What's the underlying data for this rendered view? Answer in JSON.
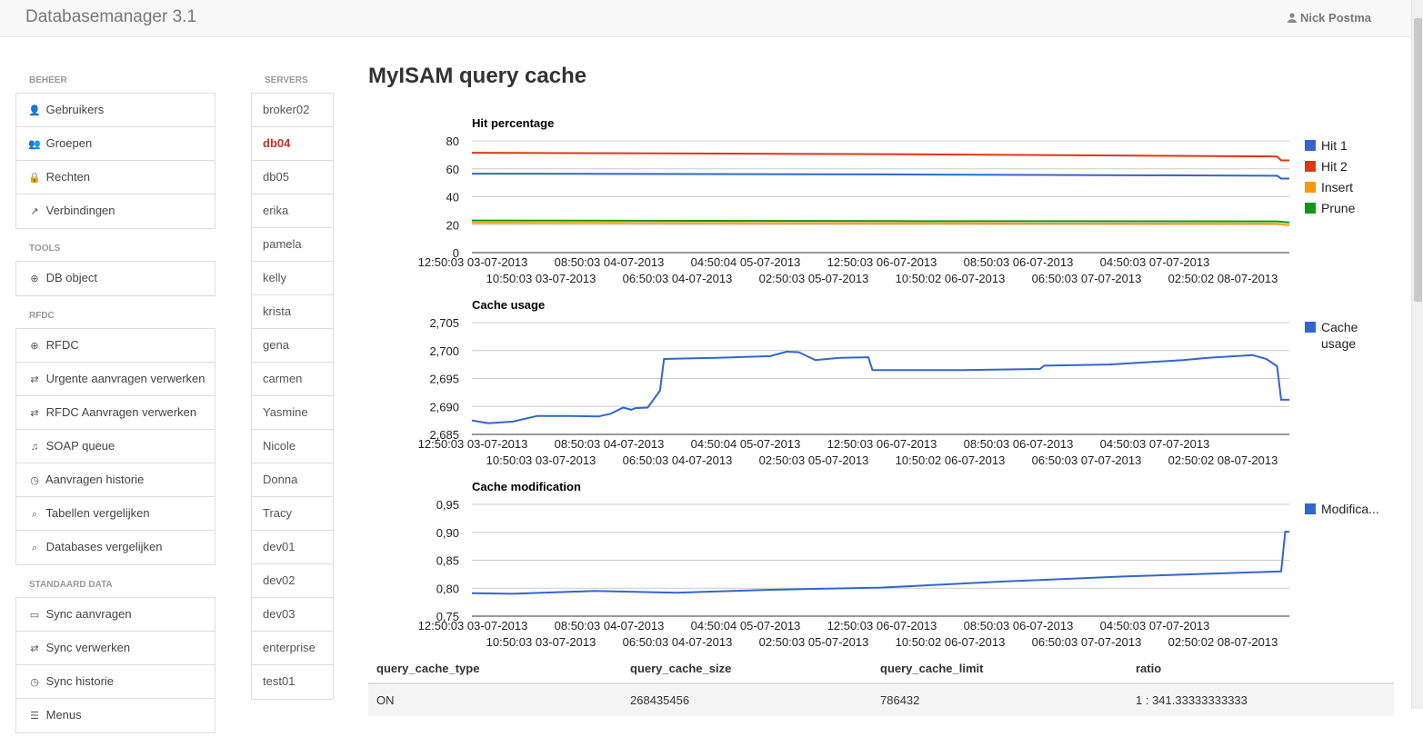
{
  "app": {
    "title": "Databasemanager 3.1",
    "user": "Nick Postma"
  },
  "sidebar": {
    "sections": [
      {
        "title": "BEHEER",
        "items": [
          {
            "label": "Gebruikers",
            "icon": "user-icon"
          },
          {
            "label": "Groepen",
            "icon": "users-icon"
          },
          {
            "label": "Rechten",
            "icon": "lock-icon"
          },
          {
            "label": "Verbindingen",
            "icon": "external-link-icon"
          }
        ]
      },
      {
        "title": "TOOLS",
        "items": [
          {
            "label": "DB object",
            "icon": "circle-arrow-icon"
          }
        ]
      },
      {
        "title": "RFDC",
        "items": [
          {
            "label": "RFDC",
            "icon": "circle-arrow-icon"
          },
          {
            "label": "Urgente aanvragen verwerken",
            "icon": "exchange-icon"
          },
          {
            "label": "RFDC Aanvragen verwerken",
            "icon": "exchange-icon"
          },
          {
            "label": "SOAP queue",
            "icon": "bell-icon"
          },
          {
            "label": "Aanvragen historie",
            "icon": "clock-icon"
          },
          {
            "label": "Tabellen vergelijken",
            "icon": "search-icon"
          },
          {
            "label": "Databases vergelijken",
            "icon": "search-icon"
          }
        ]
      },
      {
        "title": "STANDAARD DATA",
        "items": [
          {
            "label": "Sync aanvragen",
            "icon": "hdd-icon"
          },
          {
            "label": "Sync verwerken",
            "icon": "exchange-icon"
          },
          {
            "label": "Sync historie",
            "icon": "clock-icon"
          },
          {
            "label": "Menus",
            "icon": "list-icon"
          }
        ]
      }
    ]
  },
  "servers": {
    "title": "SERVERS",
    "active": "db04",
    "items": [
      "broker02",
      "db04",
      "db05",
      "erika",
      "pamela",
      "kelly",
      "krista",
      "gena",
      "carmen",
      "Yasmine",
      "Nicole",
      "Donna",
      "Tracy",
      "dev01",
      "dev02",
      "dev03",
      "enterprise",
      "test01"
    ]
  },
  "main": {
    "title": "MyISAM query cache"
  },
  "chart_data": [
    {
      "type": "line",
      "title": "Hit percentage",
      "ylim": [
        0,
        80
      ],
      "yticks": [
        "80",
        "60",
        "40",
        "20",
        "0"
      ],
      "x_tick_labels_row1": [
        "12:50:03 03-07-2013",
        "08:50:03 04-07-2013",
        "04:50:04 05-07-2013",
        "12:50:03 06-07-2013",
        "08:50:03 06-07-2013",
        "04:50:03 07-07-2013"
      ],
      "x_tick_labels_row2": [
        "10:50:03 03-07-2013",
        "06:50:03 04-07-2013",
        "02:50:03 05-07-2013",
        "10:50:02 06-07-2013",
        "06:50:03 07-07-2013",
        "02:50:02 08-07-2013"
      ],
      "series": [
        {
          "name": "Hit 1",
          "color": "#3366cc",
          "values": [
            [
              0,
              56.5
            ],
            [
              0.5,
              56
            ],
            [
              0.985,
              55
            ],
            [
              0.99,
              53
            ],
            [
              1,
              53
            ]
          ]
        },
        {
          "name": "Hit 2",
          "color": "#dc3912",
          "values": [
            [
              0,
              71.5
            ],
            [
              0.5,
              70.5
            ],
            [
              0.985,
              68.8
            ],
            [
              0.99,
              66
            ],
            [
              1,
              66
            ]
          ]
        },
        {
          "name": "Insert",
          "color": "#ff9900",
          "values": [
            [
              0,
              21.3
            ],
            [
              0.5,
              21
            ],
            [
              0.985,
              20.6
            ],
            [
              1,
              19.5
            ]
          ]
        },
        {
          "name": "Prune",
          "color": "#109618",
          "values": [
            [
              0,
              23
            ],
            [
              0.5,
              22.6
            ],
            [
              0.985,
              22.4
            ],
            [
              1,
              21.5
            ]
          ]
        }
      ]
    },
    {
      "type": "line",
      "title": "Cache usage",
      "ylim": [
        2.685,
        2.705
      ],
      "yticks": [
        "2,705",
        "2,700",
        "2,695",
        "2,690",
        "2,685"
      ],
      "x_tick_labels_row1": [
        "12:50:03 03-07-2013",
        "08:50:03 04-07-2013",
        "04:50:04 05-07-2013",
        "12:50:03 06-07-2013",
        "08:50:03 06-07-2013",
        "04:50:03 07-07-2013"
      ],
      "x_tick_labels_row2": [
        "10:50:03 03-07-2013",
        "06:50:03 04-07-2013",
        "02:50:03 05-07-2013",
        "10:50:02 06-07-2013",
        "06:50:03 07-07-2013",
        "02:50:02 08-07-2013"
      ],
      "series": [
        {
          "name": "Cache usage",
          "color": "#3366cc",
          "values": [
            [
              0,
              2.6875
            ],
            [
              0.02,
              2.687
            ],
            [
              0.05,
              2.6873
            ],
            [
              0.08,
              2.6883
            ],
            [
              0.12,
              2.6883
            ],
            [
              0.155,
              2.6882
            ],
            [
              0.17,
              2.6887
            ],
            [
              0.185,
              2.6898
            ],
            [
              0.195,
              2.6894
            ],
            [
              0.2,
              2.6897
            ],
            [
              0.215,
              2.6898
            ],
            [
              0.23,
              2.6928
            ],
            [
              0.235,
              2.6985
            ],
            [
              0.3,
              2.6987
            ],
            [
              0.365,
              2.699
            ],
            [
              0.385,
              2.6998
            ],
            [
              0.4,
              2.6997
            ],
            [
              0.42,
              2.6983
            ],
            [
              0.45,
              2.6987
            ],
            [
              0.485,
              2.6988
            ],
            [
              0.49,
              2.6965
            ],
            [
              0.6,
              2.6965
            ],
            [
              0.695,
              2.6967
            ],
            [
              0.7,
              2.6973
            ],
            [
              0.78,
              2.6975
            ],
            [
              0.87,
              2.6983
            ],
            [
              0.9,
              2.6987
            ],
            [
              0.955,
              2.6992
            ],
            [
              0.972,
              2.6985
            ],
            [
              0.985,
              2.6972
            ],
            [
              0.99,
              2.6912
            ],
            [
              1,
              2.6912
            ]
          ]
        }
      ]
    },
    {
      "type": "line",
      "title": "Cache modification",
      "ylim": [
        0.75,
        0.95
      ],
      "yticks": [
        "0,95",
        "0,90",
        "0,85",
        "0,80",
        "0,75"
      ],
      "x_tick_labels_row1": [
        "12:50:03 03-07-2013",
        "08:50:03 04-07-2013",
        "04:50:04 05-07-2013",
        "12:50:03 06-07-2013",
        "08:50:03 06-07-2013",
        "04:50:03 07-07-2013"
      ],
      "x_tick_labels_row2": [
        "10:50:03 03-07-2013",
        "06:50:03 04-07-2013",
        "02:50:03 05-07-2013",
        "10:50:02 06-07-2013",
        "06:50:03 07-07-2013",
        "02:50:02 08-07-2013"
      ],
      "series": [
        {
          "name": "Modifica...",
          "color": "#3366cc",
          "values": [
            [
              0,
              0.791
            ],
            [
              0.05,
              0.79
            ],
            [
              0.15,
              0.795
            ],
            [
              0.25,
              0.792
            ],
            [
              0.36,
              0.797
            ],
            [
              0.5,
              0.801
            ],
            [
              0.65,
              0.812
            ],
            [
              0.8,
              0.821
            ],
            [
              0.99,
              0.83
            ],
            [
              0.995,
              0.901
            ],
            [
              1,
              0.901
            ]
          ]
        }
      ]
    }
  ],
  "table": {
    "headers": [
      "query_cache_type",
      "query_cache_size",
      "query_cache_limit",
      "ratio"
    ],
    "rows": [
      [
        "ON",
        "268435456",
        "786432",
        "1 : 341.33333333333"
      ]
    ]
  }
}
